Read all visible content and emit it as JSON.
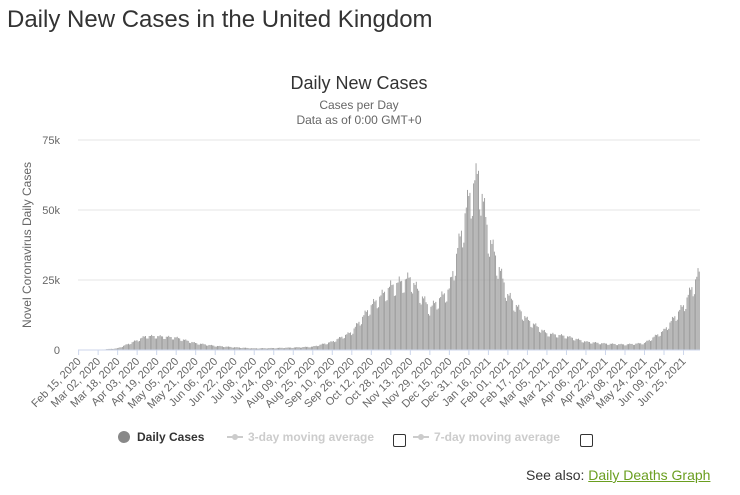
{
  "page": {
    "title": "Daily New Cases in the United Kingdom"
  },
  "legend": {
    "daily_label": "Daily Cases",
    "ma3_label": "3-day moving average",
    "ma7_label": "7-day moving average"
  },
  "see_also": {
    "prefix": "See also:",
    "link_label": "Daily Deaths Graph"
  },
  "colors": {
    "bars": "#999999",
    "link": "#6a9e1f",
    "grid": "#e6e6e6",
    "legend_inactive": "#cccccc"
  },
  "chart_data": {
    "type": "bar",
    "title": "Daily New Cases",
    "subtitle": "Cases per Day",
    "subtitle2": "Data as of 0:00 GMT+0",
    "ylabel": "Novel Coronavirus Daily Cases",
    "xlabel": "",
    "ylim": [
      0,
      75000
    ],
    "yticks": [
      0,
      25000,
      50000,
      75000
    ],
    "ytick_labels": [
      "0",
      "25k",
      "50k",
      "75k"
    ],
    "grid": true,
    "legend_position": "bottom",
    "start_date": "2020-02-15",
    "end_date": "2021-07-08",
    "xtick_labels": [
      "Feb 15, 2020",
      "Mar 02, 2020",
      "Mar 18, 2020",
      "Apr 03, 2020",
      "Apr 19, 2020",
      "May 05, 2020",
      "May 21, 2020",
      "Jun 06, 2020",
      "Jun 22, 2020",
      "Jul 08, 2020",
      "Jul 24, 2020",
      "Aug 09, 2020",
      "Aug 25, 2020",
      "Sep 10, 2020",
      "Sep 26, 2020",
      "Oct 12, 2020",
      "Oct 28, 2020",
      "Nov 13, 2020",
      "Nov 29, 2020",
      "Dec 15, 2020",
      "Dec 31, 2020",
      "Jan 16, 2021",
      "Feb 01, 2021",
      "Feb 17, 2021",
      "Mar 05, 2021",
      "Mar 21, 2021",
      "Apr 06, 2021",
      "Apr 22, 2021",
      "May 08, 2021",
      "May 24, 2021",
      "Jun 09, 2021",
      "Jun 25, 2021"
    ],
    "series": [
      {
        "values_anchor_points": [
          {
            "date": "2020-02-15",
            "value": 0
          },
          {
            "date": "2020-03-02",
            "value": 50
          },
          {
            "date": "2020-03-18",
            "value": 600
          },
          {
            "date": "2020-04-03",
            "value": 3500
          },
          {
            "date": "2020-04-10",
            "value": 5000
          },
          {
            "date": "2020-04-19",
            "value": 5000
          },
          {
            "date": "2020-05-05",
            "value": 4500
          },
          {
            "date": "2020-05-21",
            "value": 2500
          },
          {
            "date": "2020-06-06",
            "value": 1500
          },
          {
            "date": "2020-06-22",
            "value": 1000
          },
          {
            "date": "2020-07-08",
            "value": 600
          },
          {
            "date": "2020-07-24",
            "value": 700
          },
          {
            "date": "2020-08-09",
            "value": 900
          },
          {
            "date": "2020-08-25",
            "value": 1200
          },
          {
            "date": "2020-09-10",
            "value": 3000
          },
          {
            "date": "2020-09-26",
            "value": 6500
          },
          {
            "date": "2020-10-12",
            "value": 16000
          },
          {
            "date": "2020-10-28",
            "value": 23000
          },
          {
            "date": "2020-11-13",
            "value": 26000
          },
          {
            "date": "2020-11-29",
            "value": 15000
          },
          {
            "date": "2020-12-15",
            "value": 22000
          },
          {
            "date": "2020-12-31",
            "value": 55000
          },
          {
            "date": "2021-01-08",
            "value": 64000
          },
          {
            "date": "2021-01-16",
            "value": 42000
          },
          {
            "date": "2021-02-01",
            "value": 20000
          },
          {
            "date": "2021-02-17",
            "value": 11000
          },
          {
            "date": "2021-03-05",
            "value": 6000
          },
          {
            "date": "2021-03-21",
            "value": 5000
          },
          {
            "date": "2021-04-06",
            "value": 3000
          },
          {
            "date": "2021-04-22",
            "value": 2300
          },
          {
            "date": "2021-05-08",
            "value": 2000
          },
          {
            "date": "2021-05-24",
            "value": 2500
          },
          {
            "date": "2021-06-09",
            "value": 7000
          },
          {
            "date": "2021-06-25",
            "value": 16000
          },
          {
            "date": "2021-07-08",
            "value": 28000
          }
        ]
      }
    ]
  }
}
